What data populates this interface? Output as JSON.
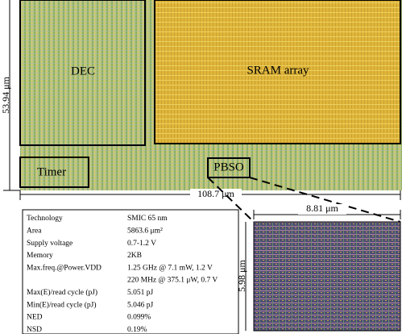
{
  "layout": {
    "blocks": [
      {
        "label": "DEC"
      },
      {
        "label": "SRAM array"
      },
      {
        "label": "Timer"
      },
      {
        "label": "PBSO"
      }
    ],
    "dimensions": {
      "height": "53.94 μm",
      "width": "108.7 μm",
      "inset_width": "8.81 μm",
      "inset_height": "5.98 μm"
    }
  },
  "table": {
    "rows": [
      [
        "Technology",
        "SMIC 65 nm"
      ],
      [
        "Area",
        "5863.6 μm²"
      ],
      [
        "Supply voltage",
        "0.7-1.2 V"
      ],
      [
        "Memory",
        "2KB"
      ],
      [
        "Max.freq.@Power.VDD",
        [
          "1.25 GHz @ 7.1 mW, 1.2 V",
          "220 MHz @ 375.1 μW, 0.7 V"
        ]
      ],
      [
        "Max(E)/read cycle (pJ)",
        "5.051 pJ"
      ],
      [
        "Min(E)/read cycle (pJ)",
        "5.046 pJ"
      ],
      [
        "NED",
        "0.099%"
      ],
      [
        "NSD",
        "0.19%"
      ]
    ]
  }
}
